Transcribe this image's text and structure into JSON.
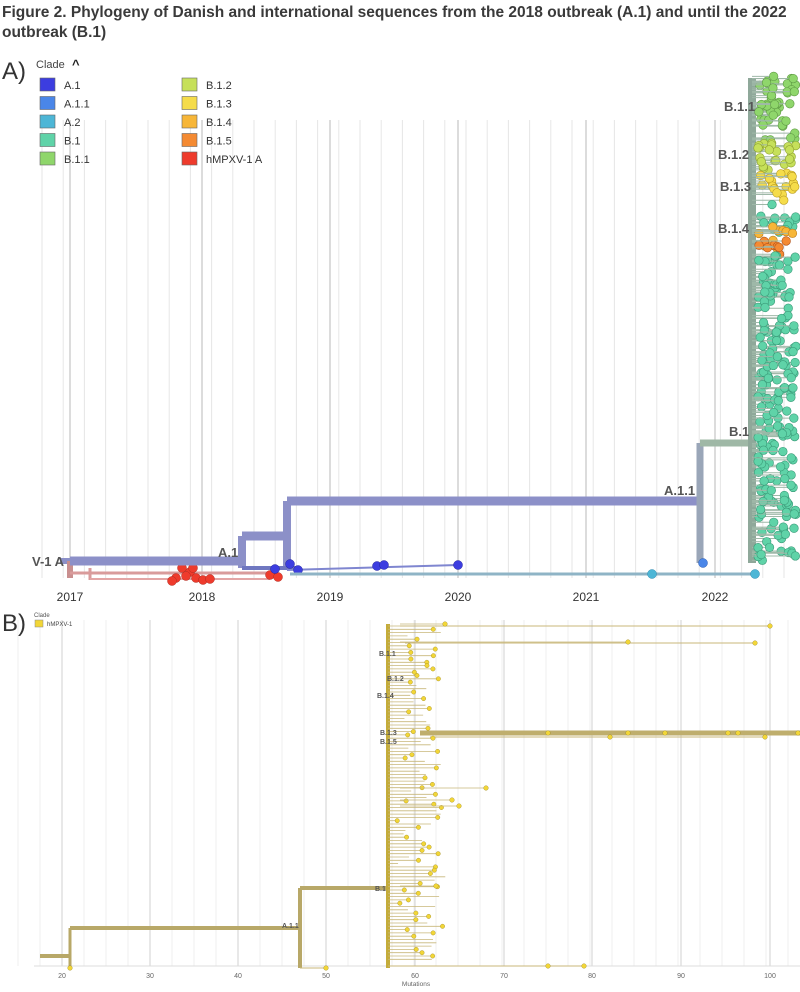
{
  "figure": {
    "title": "Figure 2. Phylogeny of Danish and international sequences from the 2018 outbreak (A.1) and until the 2022 outbreak (B.1)"
  },
  "panel_a": {
    "letter": "A)",
    "legend": {
      "header": "Clade",
      "toggle_glyph": "^",
      "items": [
        {
          "label": "A.1",
          "color": "#3c3de0"
        },
        {
          "label": "A.1.1",
          "color": "#4a86e8"
        },
        {
          "label": "A.2",
          "color": "#4db6d6"
        },
        {
          "label": "B.1",
          "color": "#5fd3a8"
        },
        {
          "label": "B.1.1",
          "color": "#8fd66b"
        },
        {
          "label": "B.1.2",
          "color": "#c6e05a"
        },
        {
          "label": "B.1.3",
          "color": "#f5dc4a"
        },
        {
          "label": "B.1.4",
          "color": "#f7b638"
        },
        {
          "label": "B.1.5",
          "color": "#f48a32"
        },
        {
          "label": "hMPXV-1 A",
          "color": "#ee3b2c"
        }
      ]
    },
    "axis_ticks": [
      "2017",
      "2018",
      "2019",
      "2020",
      "2021",
      "2022"
    ],
    "clade_labels": [
      "B.1.1",
      "B.1.2",
      "B.1.3",
      "B.1.4",
      "B.1",
      "A.1.1",
      "A.1",
      "V-1 A"
    ]
  },
  "panel_b": {
    "letter": "B)",
    "legend": {
      "header": "Clade",
      "items": [
        {
          "label": "hMPXV-1",
          "color": "#f2d637"
        }
      ]
    },
    "axis_ticks": [
      "20",
      "30",
      "40",
      "50",
      "60",
      "70",
      "80",
      "90",
      "100"
    ],
    "axis_label": "Mutations",
    "clade_labels": [
      "B.1.1",
      "B.1.2",
      "B.1.4",
      "B.1.3",
      "B.1.5",
      "B.1",
      "A.1.1"
    ]
  }
}
